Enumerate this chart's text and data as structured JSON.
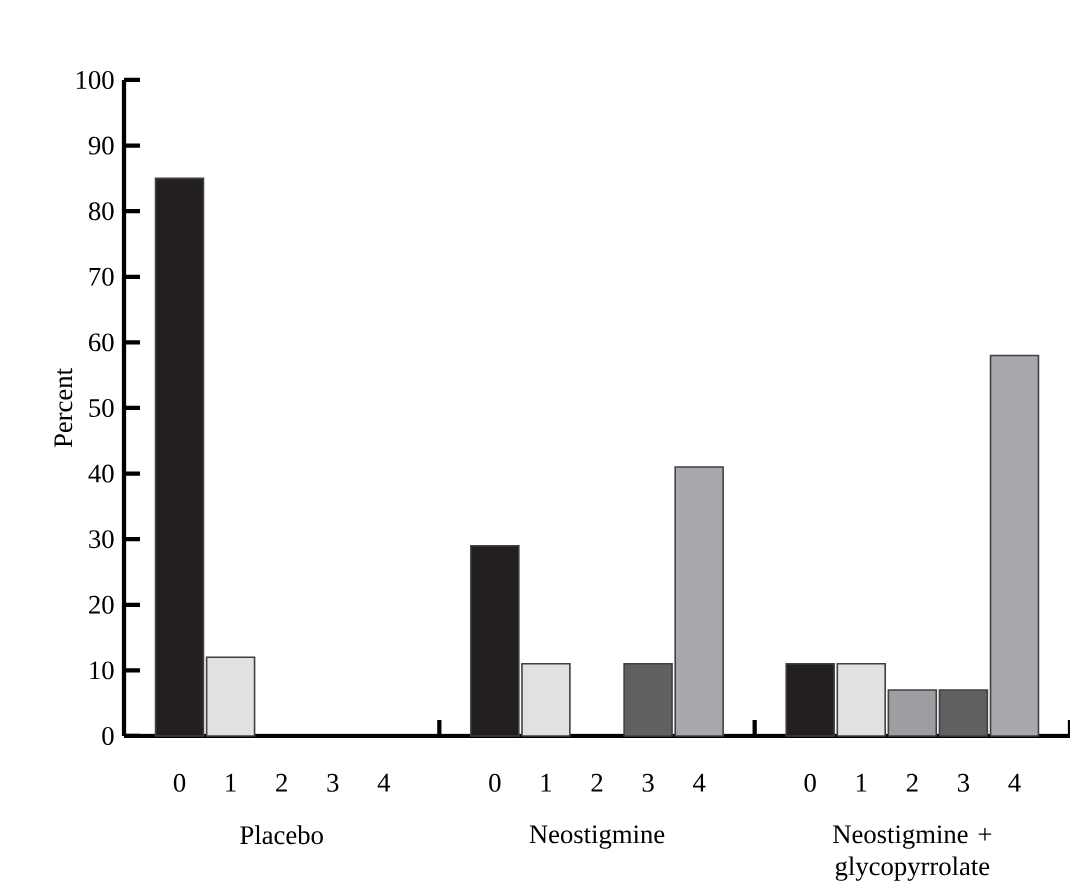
{
  "chart_data": {
    "type": "bar",
    "ylabel": "Percent",
    "categories": [
      "Placebo",
      "Neostigmine",
      "Neostigmine + glycopyrrolate"
    ],
    "series": [
      {
        "name": "0",
        "color": "#231f20",
        "values": [
          85,
          29,
          11
        ]
      },
      {
        "name": "1",
        "color": "#e0e1e2",
        "values": [
          12,
          11,
          11
        ]
      },
      {
        "name": "2",
        "color": "#9d9ea1",
        "values": [
          0,
          0,
          7
        ]
      },
      {
        "name": "3",
        "color": "#5f6062",
        "values": [
          0,
          11,
          7
        ]
      },
      {
        "name": "4",
        "color": "#a8a9ac",
        "values": [
          0,
          41,
          58
        ]
      }
    ],
    "ylim": [
      0,
      100
    ],
    "yticks": [
      0,
      10,
      20,
      30,
      40,
      50,
      60,
      70,
      80,
      90,
      100
    ]
  }
}
